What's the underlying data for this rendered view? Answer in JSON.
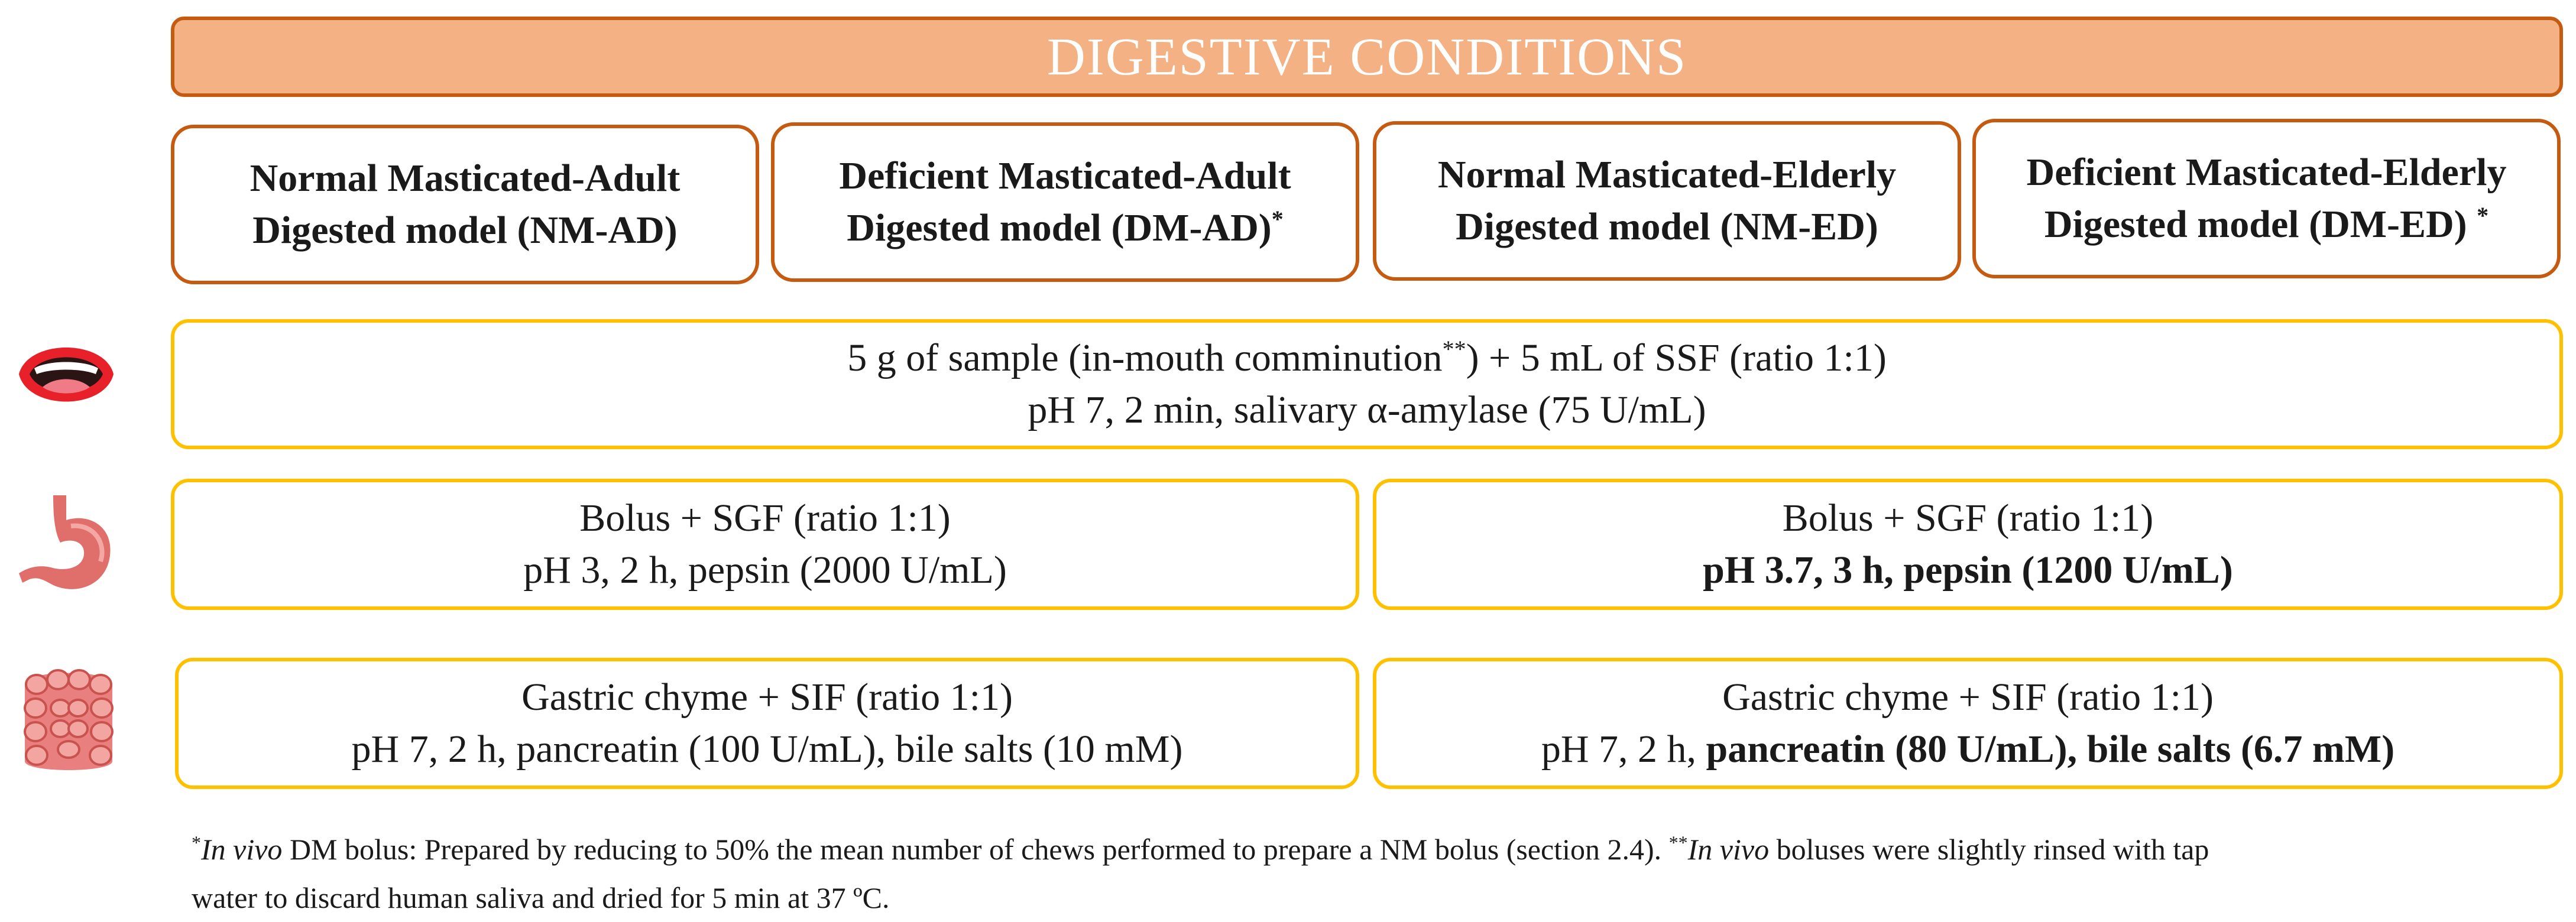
{
  "title": "DIGESTIVE CONDITIONS",
  "models": [
    {
      "line1": "Normal Masticated-Adult",
      "line2": "Digested model (NM-AD)",
      "mark": ""
    },
    {
      "line1": "Deficient Masticated-Adult",
      "line2": "Digested model (DM-AD)",
      "mark": "*"
    },
    {
      "line1": "Normal Masticated-Elderly",
      "line2": "Digested model (NM-ED)",
      "mark": ""
    },
    {
      "line1": "Deficient Masticated-Elderly",
      "line2": "Digested model (DM-ED) ",
      "mark": "*"
    }
  ],
  "oral": {
    "line1_pre": "5 g of sample (in-mouth comminution",
    "line1_mark": "**",
    "line1_post": ") + 5 mL of SSF (ratio 1:1)",
    "line2": "pH 7, 2 min, salivary α-amylase (75 U/mL)"
  },
  "gastric": {
    "adult": {
      "line1": "Bolus + SGF (ratio 1:1)",
      "line2": "pH 3, 2 h, pepsin (2000 U/mL)"
    },
    "elderly": {
      "line1": "Bolus + SGF (ratio 1:1)",
      "line2": "pH 3.7, 3 h, pepsin (1200 U/mL)"
    }
  },
  "intestinal": {
    "adult": {
      "line1": "Gastric chyme + SIF (ratio 1:1)",
      "line2": "pH 7, 2 h, pancreatin (100 U/mL), bile salts (10 mM)"
    },
    "elderly": {
      "line1": "Gastric chyme + SIF (ratio 1:1)",
      "line2_plain": "pH 7, 2 h, ",
      "line2_bold": "pancreatin (80 U/mL), bile salts (6.7 mM)"
    }
  },
  "icons": {
    "oral": "mouth-icon",
    "gastric": "stomach-icon",
    "intestinal": "intestine-icon"
  },
  "colors": {
    "banner_fill": "#f4b183",
    "banner_border": "#c55a11",
    "model_border": "#c55a11",
    "phase_border": "#ffc000"
  },
  "footnote": {
    "mark1": "*",
    "invivo1": "In vivo",
    "text1": " DM bolus: Prepared by reducing to 50% the mean number of chews performed to prepare a NM bolus (section 2.4). ",
    "mark2": "**",
    "invivo2": "In vivo",
    "text2": " boluses were slightly rinsed with tap",
    "line2": "water to discard human saliva and dried for 5 min at 37 ºC."
  }
}
